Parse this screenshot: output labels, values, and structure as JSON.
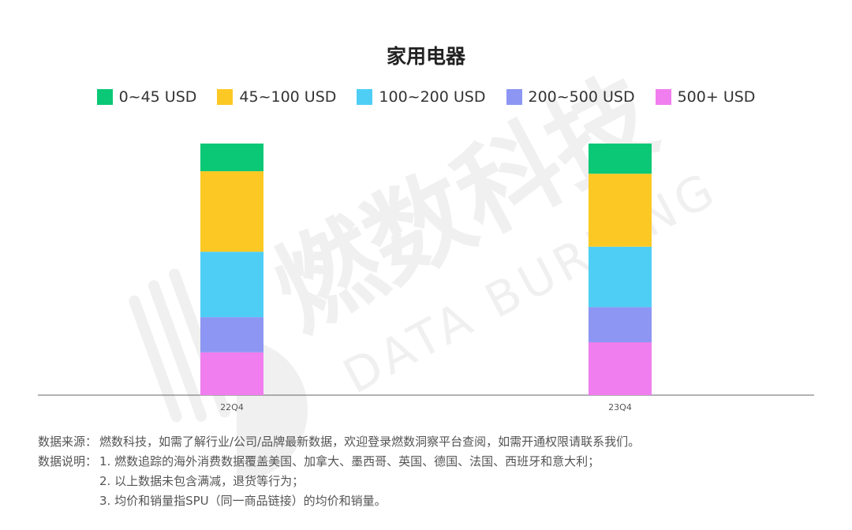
{
  "chart_data": {
    "type": "bar",
    "stacked": true,
    "percent": true,
    "title": "家用电器",
    "categories": [
      "22Q4",
      "23Q4"
    ],
    "series": [
      {
        "name": "0~45 USD",
        "color": "#0BC876",
        "values": [
          11,
          12
        ]
      },
      {
        "name": "45~100 USD",
        "color": "#FCC924",
        "values": [
          32,
          29
        ]
      },
      {
        "name": "100~200 USD",
        "color": "#4FCEF5",
        "values": [
          26,
          24
        ]
      },
      {
        "name": "200~500 USD",
        "color": "#8D96F3",
        "values": [
          14,
          14
        ]
      },
      {
        "name": "500+ USD",
        "color": "#F07EEE",
        "values": [
          17,
          21
        ]
      }
    ],
    "ylim": [
      0,
      100
    ],
    "grid": false,
    "legend": "top"
  },
  "notes": {
    "source_label": "数据来源：",
    "source_text": "燃数科技，如需了解行业/公司/品牌最新数据，欢迎登录燃数洞察平台查阅，如需开通权限请联系我们。",
    "desc_label": "数据说明：",
    "items": [
      "1. 燃数追踪的海外消费数据覆盖美国、加拿大、墨西哥、英国、德国、法国、西班牙和意大利；",
      "2. 以上数据未包含满减，退货等行为；",
      "3. 均价和销量指SPU（同一商品链接）的均价和销量。"
    ]
  },
  "watermark": {
    "brand": "燃数科技",
    "brand_en": "DATA BURNING"
  }
}
